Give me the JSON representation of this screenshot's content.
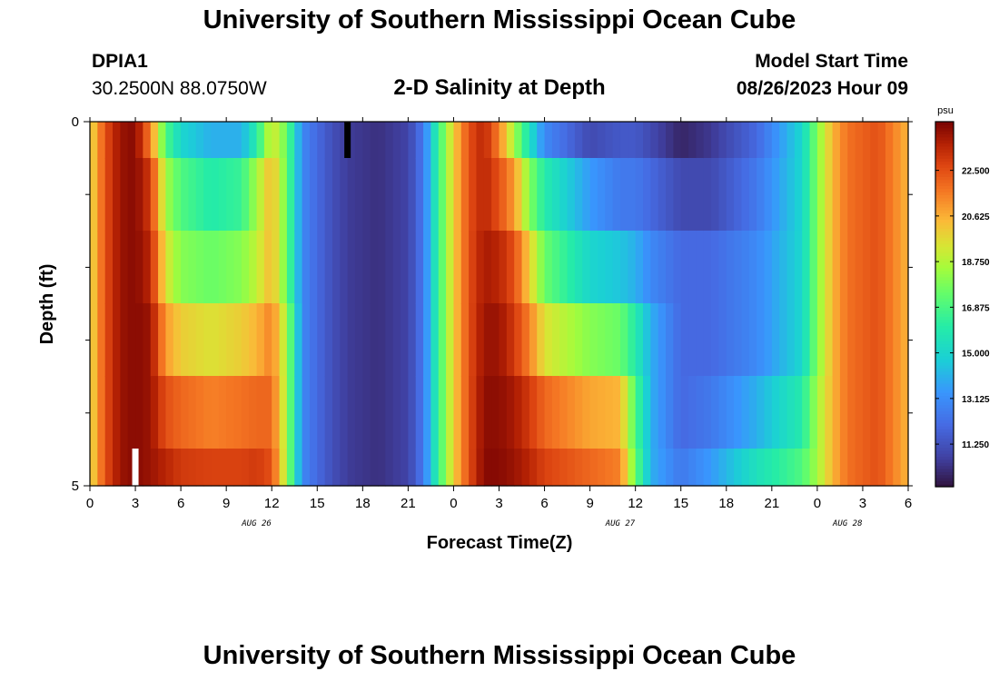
{
  "header": {
    "title": "University of Southern Mississippi Ocean Cube",
    "station": "DPIA1",
    "coords": "30.2500N  88.0750W",
    "subtitle": "2-D Salinity at Depth",
    "start_label": "Model Start Time",
    "start_value": "08/26/2023 Hour 09"
  },
  "footer": {
    "title": "University of Southern Mississippi Ocean Cube"
  },
  "chart_data": {
    "type": "heatmap",
    "title": "2-D Salinity at Depth",
    "xlabel": "Forecast Time(Z)",
    "ylabel": "Depth (ft)",
    "x_hours_from_0z_aug26": [
      0,
      54
    ],
    "x_tick_labels": [
      "0",
      "3",
      "6",
      "9",
      "12",
      "15",
      "18",
      "21",
      "0",
      "3",
      "6",
      "9",
      "12",
      "15",
      "18",
      "21",
      "0",
      "3",
      "6"
    ],
    "day_labels": [
      {
        "label": "AUG 26",
        "hour": 11
      },
      {
        "label": "AUG 27",
        "hour": 35
      },
      {
        "label": "AUG 28",
        "hour": 50
      }
    ],
    "y_tick_labels": [
      "0",
      "5"
    ],
    "ylim": [
      0,
      5
    ],
    "depth_levels_ft": [
      0.5,
      1.25,
      2.25,
      3.25,
      4.25,
      4.75
    ],
    "colorbar": {
      "unit": "psu",
      "range": [
        9.5,
        24.5
      ],
      "tick_labels": [
        "22.500",
        "20.625",
        "18.750",
        "16.875",
        "15.000",
        "13.125",
        "11.250"
      ],
      "tick_values": [
        22.5,
        20.625,
        18.75,
        16.875,
        15.0,
        13.125,
        11.25
      ]
    },
    "missing_marks": [
      {
        "hour": 3,
        "depth_band": 5,
        "color": "#ffffff"
      },
      {
        "hour": 17,
        "depth_band": 0,
        "color": "#000000"
      }
    ],
    "salinity_keyframes": [
      {
        "hour": 0,
        "levels": [
          19.5,
          19.5,
          19.5,
          19.5,
          19.5,
          19.5
        ]
      },
      {
        "hour": 1,
        "levels": [
          22.5,
          22.5,
          22.5,
          22.5,
          22.5,
          22.5
        ]
      },
      {
        "hour": 2,
        "levels": [
          24.0,
          24.0,
          24.0,
          24.0,
          24.0,
          24.0
        ]
      },
      {
        "hour": 3,
        "levels": [
          24.3,
          24.3,
          24.3,
          24.3,
          24.3,
          24.3
        ]
      },
      {
        "hour": 4,
        "levels": [
          21.5,
          23.0,
          23.5,
          24.0,
          24.0,
          24.0
        ]
      },
      {
        "hour": 5,
        "levels": [
          17.0,
          18.5,
          19.5,
          21.0,
          22.5,
          23.5
        ]
      },
      {
        "hour": 6,
        "levels": [
          15.0,
          17.0,
          18.0,
          20.0,
          22.0,
          23.0
        ]
      },
      {
        "hour": 8,
        "levels": [
          14.0,
          16.0,
          17.5,
          19.5,
          21.5,
          22.8
        ]
      },
      {
        "hour": 10,
        "levels": [
          14.0,
          16.5,
          18.0,
          20.0,
          21.8,
          22.8
        ]
      },
      {
        "hour": 11,
        "levels": [
          16.0,
          18.5,
          19.0,
          20.5,
          22.0,
          23.0
        ]
      },
      {
        "hour": 12,
        "levels": [
          19.5,
          20.5,
          20.5,
          21.5,
          22.0,
          22.5
        ]
      },
      {
        "hour": 13,
        "levels": [
          17.5,
          17.5,
          17.5,
          18.5,
          18.5,
          18.5
        ]
      },
      {
        "hour": 14,
        "levels": [
          13.0,
          13.0,
          13.0,
          13.0,
          13.0,
          13.0
        ]
      },
      {
        "hour": 15,
        "levels": [
          12.0,
          12.0,
          12.0,
          12.0,
          12.0,
          12.0
        ]
      },
      {
        "hour": 16,
        "levels": [
          11.2,
          11.2,
          11.2,
          11.2,
          11.2,
          11.2
        ]
      },
      {
        "hour": 17,
        "levels": [
          10.6,
          10.6,
          10.6,
          10.6,
          10.6,
          10.6
        ]
      },
      {
        "hour": 19,
        "levels": [
          10.3,
          10.3,
          10.3,
          10.3,
          10.3,
          10.3
        ]
      },
      {
        "hour": 21,
        "levels": [
          10.8,
          10.8,
          10.8,
          10.8,
          10.8,
          10.8
        ]
      },
      {
        "hour": 22,
        "levels": [
          12.5,
          12.5,
          12.5,
          12.5,
          12.5,
          12.5
        ]
      },
      {
        "hour": 23,
        "levels": [
          16.5,
          16.5,
          16.5,
          16.5,
          16.5,
          16.5
        ]
      },
      {
        "hour": 24,
        "levels": [
          20.0,
          20.0,
          20.0,
          20.0,
          20.0,
          20.0
        ]
      },
      {
        "hour": 25,
        "levels": [
          22.5,
          22.5,
          22.5,
          22.5,
          22.5,
          22.5
        ]
      },
      {
        "hour": 26,
        "levels": [
          23.5,
          23.5,
          23.8,
          24.0,
          24.2,
          24.3
        ]
      },
      {
        "hour": 27,
        "levels": [
          21.5,
          22.5,
          23.5,
          24.0,
          24.2,
          24.3
        ]
      },
      {
        "hour": 28,
        "levels": [
          18.5,
          21.0,
          22.5,
          23.0,
          23.8,
          24.0
        ]
      },
      {
        "hour": 29,
        "levels": [
          15.5,
          18.0,
          20.0,
          21.5,
          23.0,
          23.5
        ]
      },
      {
        "hour": 30,
        "levels": [
          13.0,
          16.0,
          17.5,
          19.5,
          22.0,
          22.8
        ]
      },
      {
        "hour": 33,
        "levels": [
          11.0,
          13.5,
          15.0,
          18.0,
          20.8,
          22.0
        ]
      },
      {
        "hour": 35,
        "levels": [
          11.5,
          12.5,
          14.5,
          17.5,
          20.5,
          21.5
        ]
      },
      {
        "hour": 36,
        "levels": [
          11.5,
          12.5,
          14.0,
          16.0,
          17.0,
          17.5
        ]
      },
      {
        "hour": 37,
        "levels": [
          11.0,
          12.0,
          13.0,
          14.0,
          14.0,
          14.0
        ]
      },
      {
        "hour": 39,
        "levels": [
          10.0,
          11.0,
          12.0,
          12.0,
          12.0,
          12.5
        ]
      },
      {
        "hour": 41,
        "levels": [
          10.5,
          11.0,
          12.0,
          12.0,
          12.5,
          13.5
        ]
      },
      {
        "hour": 44,
        "levels": [
          12.0,
          12.5,
          13.0,
          13.0,
          14.0,
          15.5
        ]
      },
      {
        "hour": 47,
        "levels": [
          15.0,
          15.0,
          15.0,
          15.0,
          16.0,
          17.0
        ]
      },
      {
        "hour": 48,
        "levels": [
          18.0,
          18.0,
          18.0,
          18.0,
          18.5,
          18.5
        ]
      },
      {
        "hour": 49,
        "levels": [
          20.5,
          20.5,
          20.5,
          20.5,
          20.5,
          20.5
        ]
      },
      {
        "hour": 50,
        "levels": [
          21.8,
          21.8,
          21.8,
          21.8,
          21.8,
          21.8
        ]
      },
      {
        "hour": 52,
        "levels": [
          22.5,
          22.5,
          22.5,
          22.5,
          22.5,
          22.5
        ]
      },
      {
        "hour": 54,
        "levels": [
          20.5,
          20.5,
          20.5,
          20.5,
          20.5,
          20.5
        ]
      }
    ]
  }
}
